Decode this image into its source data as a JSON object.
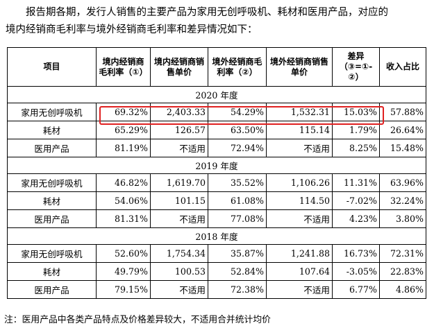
{
  "intro": {
    "line1": "报告期各期，发行人销售的主要产品为家用无创呼吸机、耗材和医用产品，对应的",
    "line2": "境内经销商毛利率与境外经销商毛利率和差异情况如下："
  },
  "table": {
    "headers": [
      "项目",
      "境内经销商毛利率（①）",
      "境内经销商销售单价",
      "境外经销商毛利率（②）",
      "境外经销商销售单价",
      "差异（③=①-②）",
      "收入占比"
    ],
    "sections": [
      {
        "year": "2020 年度",
        "rows": [
          [
            "家用无创呼吸机",
            "69.32%",
            "2,403.33",
            "54.29%",
            "1,532.31",
            "15.03%",
            "57.88%"
          ],
          [
            "耗材",
            "65.29%",
            "126.57",
            "63.50%",
            "115.14",
            "1.79%",
            "26.64%"
          ],
          [
            "医用产品",
            "81.19%",
            "不适用",
            "72.94%",
            "不适用",
            "8.25%",
            "15.48%"
          ]
        ]
      },
      {
        "year": "2019 年度",
        "rows": [
          [
            "家用无创呼吸机",
            "46.82%",
            "1,619.70",
            "35.52%",
            "1,106.26",
            "11.31%",
            "63.96%"
          ],
          [
            "耗材",
            "54.06%",
            "101.15",
            "61.08%",
            "114.50",
            "-7.02%",
            "32.24%"
          ],
          [
            "医用产品",
            "81.31%",
            "不适用",
            "77.08%",
            "不适用",
            "4.23%",
            "3.80%"
          ]
        ]
      },
      {
        "year": "2018 年度",
        "rows": [
          [
            "家用无创呼吸机",
            "52.60%",
            "1,754.34",
            "35.87%",
            "1,241.88",
            "16.73%",
            "72.31%"
          ],
          [
            "耗材",
            "49.79%",
            "100.53",
            "52.84%",
            "107.64",
            "-3.05%",
            "22.83%"
          ],
          [
            "医用产品",
            "79.15%",
            "不适用",
            "72.38%",
            "不适用",
            "6.77%",
            "4.86%"
          ]
        ]
      }
    ]
  },
  "highlight_color": "#e02020",
  "note": "注：医用产品中各类产品特点及价格差异较大，不适用合并统计均价"
}
